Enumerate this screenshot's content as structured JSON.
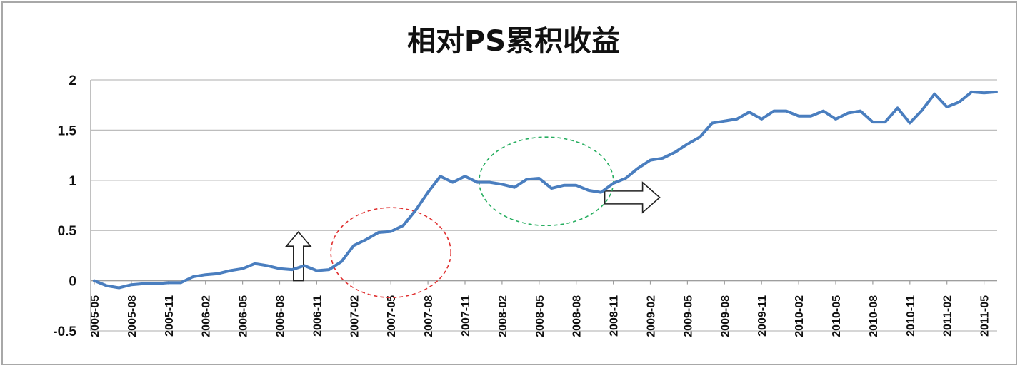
{
  "chart_data": {
    "type": "line",
    "title": "相对PS累积收益",
    "xlabel": "",
    "ylabel": "",
    "ylim": [
      -0.5,
      2
    ],
    "yticks": [
      "2",
      "1.5",
      "1",
      "0.5",
      "0",
      "-0.5"
    ],
    "grid": true,
    "legend": "none",
    "line_color": "#4a7ebf",
    "xtick_labels": [
      "2005-05",
      "2005-08",
      "2005-11",
      "2006-02",
      "2006-05",
      "2006-08",
      "2006-11",
      "2007-02",
      "2007-05",
      "2007-08",
      "2007-11",
      "2008-02",
      "2008-05",
      "2008-08",
      "2008-11",
      "2009-02",
      "2009-05",
      "2009-08",
      "2009-11",
      "2010-02",
      "2010-05",
      "2010-08",
      "2010-11",
      "2011-02",
      "2011-05"
    ],
    "series": [
      {
        "x": [
          "2005-05",
          "2005-06",
          "2005-07",
          "2005-08",
          "2005-09",
          "2005-10",
          "2005-11",
          "2005-12",
          "2006-01",
          "2006-02",
          "2006-03",
          "2006-04",
          "2006-05",
          "2006-06",
          "2006-07",
          "2006-08",
          "2006-09",
          "2006-10",
          "2006-11",
          "2006-12",
          "2007-01",
          "2007-02",
          "2007-03",
          "2007-04",
          "2007-05",
          "2007-06",
          "2007-07",
          "2007-08",
          "2007-09",
          "2007-10",
          "2007-11",
          "2007-12",
          "2008-01",
          "2008-02",
          "2008-03",
          "2008-04",
          "2008-05",
          "2008-06",
          "2008-07",
          "2008-08",
          "2008-09",
          "2008-10",
          "2008-11",
          "2008-12",
          "2009-01",
          "2009-02",
          "2009-03",
          "2009-04",
          "2009-05",
          "2009-06",
          "2009-07",
          "2009-08",
          "2009-09",
          "2009-10",
          "2009-11",
          "2009-12",
          "2010-01",
          "2010-02",
          "2010-03",
          "2010-04",
          "2010-05",
          "2010-06",
          "2010-07",
          "2010-08",
          "2010-09",
          "2010-10",
          "2010-11",
          "2010-12",
          "2011-01",
          "2011-02",
          "2011-03",
          "2011-04",
          "2011-05",
          "2011-06"
        ],
        "values": [
          0.0,
          -0.05,
          -0.07,
          -0.04,
          -0.03,
          -0.03,
          -0.02,
          -0.02,
          0.04,
          0.06,
          0.07,
          0.1,
          0.12,
          0.17,
          0.15,
          0.12,
          0.11,
          0.15,
          0.1,
          0.11,
          0.19,
          0.35,
          0.41,
          0.48,
          0.49,
          0.55,
          0.7,
          0.88,
          1.04,
          0.98,
          1.04,
          0.98,
          0.98,
          0.96,
          0.93,
          1.01,
          1.02,
          0.92,
          0.95,
          0.95,
          0.9,
          0.88,
          0.97,
          1.02,
          1.12,
          1.2,
          1.22,
          1.28,
          1.36,
          1.43,
          1.57,
          1.59,
          1.61,
          1.68,
          1.61,
          1.69,
          1.69,
          1.64,
          1.64,
          1.69,
          1.61,
          1.67,
          1.69,
          1.58,
          1.58,
          1.72,
          1.57,
          1.7,
          1.86,
          1.73,
          1.78,
          1.88,
          1.87,
          1.88
        ]
      }
    ],
    "annotations": [
      {
        "type": "up-arrow",
        "at": "2006-09",
        "value_range": [
          0.0,
          0.5
        ],
        "stroke": "#222222"
      },
      {
        "type": "right-arrow",
        "at": "2008-11",
        "value": 0.9,
        "stroke": "#222222"
      },
      {
        "type": "dashed-ellipse",
        "center": [
          "2007-05",
          0.28
        ],
        "stroke": "#e03131"
      },
      {
        "type": "dashed-ellipse",
        "center": [
          "2008-05",
          0.99
        ],
        "stroke": "#27ae60"
      }
    ]
  }
}
